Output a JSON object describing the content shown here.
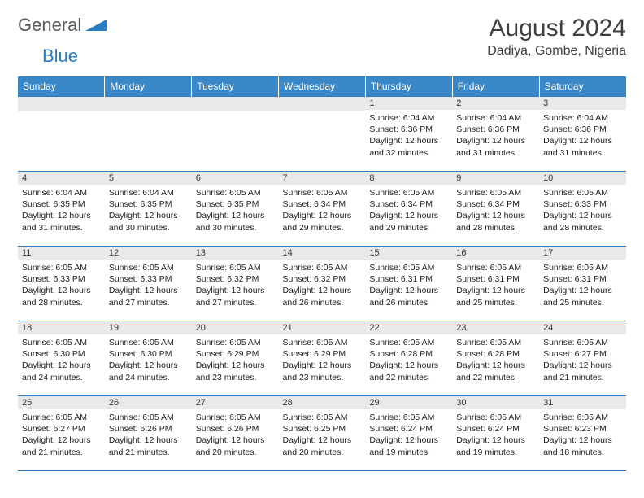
{
  "brand": {
    "general": "General",
    "blue": "Blue"
  },
  "title": "August 2024",
  "location": "Dadiya, Gombe, Nigeria",
  "colors": {
    "header_bg": "#3a87c7",
    "border": "#2a7bbf",
    "daynum_bg": "#e9e9e9",
    "text": "#222222"
  },
  "weekdays": [
    "Sunday",
    "Monday",
    "Tuesday",
    "Wednesday",
    "Thursday",
    "Friday",
    "Saturday"
  ],
  "weeks": [
    [
      null,
      null,
      null,
      null,
      {
        "n": "1",
        "sr": "6:04 AM",
        "ss": "6:36 PM",
        "dl": "12 hours and 32 minutes."
      },
      {
        "n": "2",
        "sr": "6:04 AM",
        "ss": "6:36 PM",
        "dl": "12 hours and 31 minutes."
      },
      {
        "n": "3",
        "sr": "6:04 AM",
        "ss": "6:36 PM",
        "dl": "12 hours and 31 minutes."
      }
    ],
    [
      {
        "n": "4",
        "sr": "6:04 AM",
        "ss": "6:35 PM",
        "dl": "12 hours and 31 minutes."
      },
      {
        "n": "5",
        "sr": "6:04 AM",
        "ss": "6:35 PM",
        "dl": "12 hours and 30 minutes."
      },
      {
        "n": "6",
        "sr": "6:05 AM",
        "ss": "6:35 PM",
        "dl": "12 hours and 30 minutes."
      },
      {
        "n": "7",
        "sr": "6:05 AM",
        "ss": "6:34 PM",
        "dl": "12 hours and 29 minutes."
      },
      {
        "n": "8",
        "sr": "6:05 AM",
        "ss": "6:34 PM",
        "dl": "12 hours and 29 minutes."
      },
      {
        "n": "9",
        "sr": "6:05 AM",
        "ss": "6:34 PM",
        "dl": "12 hours and 28 minutes."
      },
      {
        "n": "10",
        "sr": "6:05 AM",
        "ss": "6:33 PM",
        "dl": "12 hours and 28 minutes."
      }
    ],
    [
      {
        "n": "11",
        "sr": "6:05 AM",
        "ss": "6:33 PM",
        "dl": "12 hours and 28 minutes."
      },
      {
        "n": "12",
        "sr": "6:05 AM",
        "ss": "6:33 PM",
        "dl": "12 hours and 27 minutes."
      },
      {
        "n": "13",
        "sr": "6:05 AM",
        "ss": "6:32 PM",
        "dl": "12 hours and 27 minutes."
      },
      {
        "n": "14",
        "sr": "6:05 AM",
        "ss": "6:32 PM",
        "dl": "12 hours and 26 minutes."
      },
      {
        "n": "15",
        "sr": "6:05 AM",
        "ss": "6:31 PM",
        "dl": "12 hours and 26 minutes."
      },
      {
        "n": "16",
        "sr": "6:05 AM",
        "ss": "6:31 PM",
        "dl": "12 hours and 25 minutes."
      },
      {
        "n": "17",
        "sr": "6:05 AM",
        "ss": "6:31 PM",
        "dl": "12 hours and 25 minutes."
      }
    ],
    [
      {
        "n": "18",
        "sr": "6:05 AM",
        "ss": "6:30 PM",
        "dl": "12 hours and 24 minutes."
      },
      {
        "n": "19",
        "sr": "6:05 AM",
        "ss": "6:30 PM",
        "dl": "12 hours and 24 minutes."
      },
      {
        "n": "20",
        "sr": "6:05 AM",
        "ss": "6:29 PM",
        "dl": "12 hours and 23 minutes."
      },
      {
        "n": "21",
        "sr": "6:05 AM",
        "ss": "6:29 PM",
        "dl": "12 hours and 23 minutes."
      },
      {
        "n": "22",
        "sr": "6:05 AM",
        "ss": "6:28 PM",
        "dl": "12 hours and 22 minutes."
      },
      {
        "n": "23",
        "sr": "6:05 AM",
        "ss": "6:28 PM",
        "dl": "12 hours and 22 minutes."
      },
      {
        "n": "24",
        "sr": "6:05 AM",
        "ss": "6:27 PM",
        "dl": "12 hours and 21 minutes."
      }
    ],
    [
      {
        "n": "25",
        "sr": "6:05 AM",
        "ss": "6:27 PM",
        "dl": "12 hours and 21 minutes."
      },
      {
        "n": "26",
        "sr": "6:05 AM",
        "ss": "6:26 PM",
        "dl": "12 hours and 21 minutes."
      },
      {
        "n": "27",
        "sr": "6:05 AM",
        "ss": "6:26 PM",
        "dl": "12 hours and 20 minutes."
      },
      {
        "n": "28",
        "sr": "6:05 AM",
        "ss": "6:25 PM",
        "dl": "12 hours and 20 minutes."
      },
      {
        "n": "29",
        "sr": "6:05 AM",
        "ss": "6:24 PM",
        "dl": "12 hours and 19 minutes."
      },
      {
        "n": "30",
        "sr": "6:05 AM",
        "ss": "6:24 PM",
        "dl": "12 hours and 19 minutes."
      },
      {
        "n": "31",
        "sr": "6:05 AM",
        "ss": "6:23 PM",
        "dl": "12 hours and 18 minutes."
      }
    ]
  ],
  "labels": {
    "sunrise": "Sunrise:",
    "sunset": "Sunset:",
    "daylight": "Daylight:"
  }
}
